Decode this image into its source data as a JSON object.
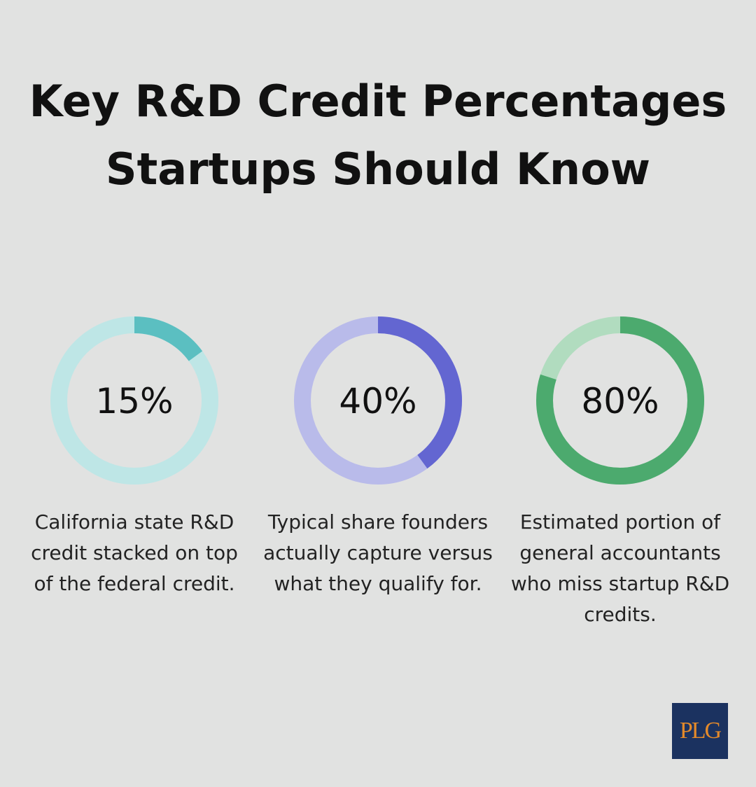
{
  "title": "Key R&D Credit Percentages Startups Should Know",
  "chart_data": [
    {
      "type": "donut",
      "values": [
        15
      ],
      "value_labels": [
        "15%"
      ],
      "ylim": [
        0,
        100
      ],
      "color": "#5bbfc1",
      "track_color": "#bee6e6",
      "caption": "California state R&D credit stacked on top of the federal credit."
    },
    {
      "type": "donut",
      "values": [
        40
      ],
      "value_labels": [
        "40%"
      ],
      "ylim": [
        0,
        100
      ],
      "color": "#6366d1",
      "track_color": "#b9bbea",
      "caption": "Typical share founders actually capture versus what they qualify for."
    },
    {
      "type": "donut",
      "values": [
        80
      ],
      "value_labels": [
        "80%"
      ],
      "ylim": [
        0,
        100
      ],
      "color": "#4caa6e",
      "track_color": "#b1dcbf",
      "caption": "Estimated portion of general accountants who miss startup R&D credits."
    }
  ],
  "logo": "PLG"
}
